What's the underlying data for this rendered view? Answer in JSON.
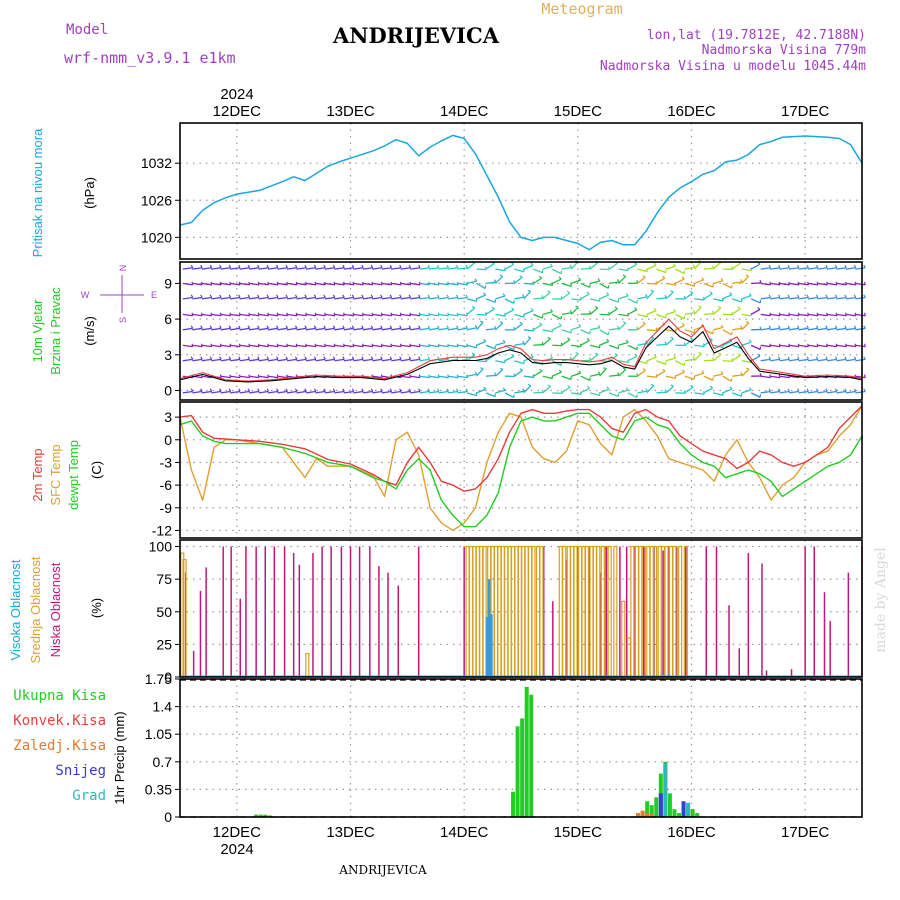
{
  "header": {
    "model_label": "Model",
    "model_name": "wrf-nmm_v3.9.1 e1km",
    "station": "ANDRIJEVICA",
    "product": "Meteogram",
    "coords": "lon,lat (19.7812E, 42.7188N)",
    "elevation": "Nadmorska Visina 779m",
    "model_elevation": "Nadmorska Visina u modelu 1045.44m",
    "watermark": "made by Angel",
    "footer": "ANDRIJEVICA"
  },
  "colors": {
    "pressure": "#1aa6e0",
    "temp2m": "#e83c3c",
    "sfc": "#e0a030",
    "dew": "#22cc22",
    "high_cloud": "#3a9ad8",
    "mid_cloud": "#d8a020",
    "low_cloud": "#c0187a",
    "total_precip": "#22cc22",
    "purple": "#a040c0",
    "conv": "#e84040",
    "frozen": "#e07a30",
    "snow": "#3a3ad8",
    "hail": "#30b8b8"
  },
  "chart_data": [
    {
      "type": "line",
      "panel": "pressure",
      "ylabel_side": "Pritisak na nivou mora",
      "unit": "(hPa)",
      "ylim": [
        1016.5,
        1038.5
      ],
      "yticks": [
        1020,
        1026,
        1032
      ],
      "grid": true,
      "x_days": [
        "12DEC",
        "13DEC",
        "14DEC",
        "15DEC",
        "16DEC",
        "17DEC"
      ],
      "x_year": "2024",
      "xlim": [
        11.5,
        17.5
      ],
      "series": [
        {
          "x": [
            11.5,
            11.6,
            11.7,
            11.8,
            11.9,
            12.0,
            12.2,
            12.4,
            12.5,
            12.6,
            12.8,
            12.9,
            13.0,
            13.2,
            13.3,
            13.4,
            13.5,
            13.6,
            13.7,
            13.8,
            13.9,
            14.0,
            14.1,
            14.2,
            14.3,
            14.4,
            14.5,
            14.6,
            14.7,
            14.8,
            14.9,
            15.0,
            15.1,
            15.2,
            15.3,
            15.4,
            15.5,
            15.6,
            15.7,
            15.8,
            15.9,
            16.0,
            16.1,
            16.2,
            16.3,
            16.4,
            16.5,
            16.6,
            16.7,
            16.8,
            17.0,
            17.2,
            17.3,
            17.4,
            17.5
          ],
          "y": [
            1022.0,
            1022.4,
            1024.4,
            1025.6,
            1026.4,
            1027.0,
            1027.6,
            1029.0,
            1029.8,
            1029.2,
            1031.5,
            1032.2,
            1032.8,
            1034.0,
            1034.8,
            1035.8,
            1035.2,
            1033.2,
            1034.6,
            1035.6,
            1036.5,
            1036.0,
            1033.5,
            1030.0,
            1026.5,
            1022.5,
            1020.0,
            1019.5,
            1020.0,
            1020.0,
            1019.5,
            1019.0,
            1018.0,
            1019.2,
            1019.5,
            1018.8,
            1018.8,
            1021.0,
            1024.0,
            1026.5,
            1028.0,
            1029.0,
            1030.2,
            1030.8,
            1032.2,
            1032.5,
            1033.4,
            1035.0,
            1035.5,
            1036.2,
            1036.4,
            1036.2,
            1036.0,
            1035.0,
            1032.0
          ]
        }
      ]
    },
    {
      "type": "line",
      "panel": "wind",
      "ylabel_side": [
        "10m Vjetar",
        "Brzina i Pravac"
      ],
      "unit": "(m/s)",
      "compass": {
        "n": "N",
        "s": "S",
        "w": "W",
        "e": "E"
      },
      "ylim": [
        -0.8,
        10.8
      ],
      "yticks": [
        0,
        3,
        6,
        9
      ],
      "series": [
        {
          "name": "speed",
          "x": [
            11.5,
            11.7,
            11.9,
            12.1,
            12.3,
            12.5,
            12.7,
            12.9,
            13.1,
            13.3,
            13.5,
            13.7,
            13.9,
            14.1,
            14.2,
            14.3,
            14.4,
            14.5,
            14.6,
            14.7,
            14.8,
            14.9,
            15.0,
            15.1,
            15.2,
            15.3,
            15.4,
            15.5,
            15.6,
            15.7,
            15.8,
            15.9,
            16.0,
            16.1,
            16.2,
            16.3,
            16.4,
            16.5,
            16.6,
            16.8,
            17.0,
            17.2,
            17.4,
            17.5
          ],
          "y": [
            1.0,
            1.5,
            0.9,
            0.8,
            0.9,
            1.1,
            1.3,
            1.2,
            1.2,
            1.0,
            1.5,
            2.5,
            2.8,
            2.8,
            3.0,
            3.5,
            3.8,
            3.5,
            2.6,
            2.5,
            2.6,
            2.6,
            2.5,
            2.4,
            2.5,
            2.8,
            2.2,
            2.0,
            4.0,
            5.0,
            6.0,
            5.0,
            4.5,
            5.5,
            3.5,
            4.0,
            4.5,
            3.0,
            1.8,
            1.5,
            1.2,
            1.3,
            1.2,
            1.0
          ]
        }
      ]
    },
    {
      "type": "line",
      "panel": "temperature",
      "ylabel_side": [
        "2m Temp",
        "SFC Temp",
        "dewpt Temp"
      ],
      "unit": "(C)",
      "ylim": [
        -13,
        5
      ],
      "yticks": [
        3,
        0,
        -3,
        -6,
        -9,
        -12
      ],
      "series": [
        {
          "name": "2m Temp",
          "x": [
            11.5,
            11.6,
            11.7,
            11.8,
            11.9,
            12.0,
            12.2,
            12.4,
            12.6,
            12.8,
            13.0,
            13.2,
            13.3,
            13.4,
            13.5,
            13.6,
            13.7,
            13.8,
            13.9,
            14.0,
            14.1,
            14.2,
            14.3,
            14.4,
            14.5,
            14.6,
            14.7,
            14.8,
            14.9,
            15.0,
            15.1,
            15.2,
            15.3,
            15.4,
            15.5,
            15.6,
            15.7,
            15.8,
            15.9,
            16.0,
            16.1,
            16.2,
            16.3,
            16.4,
            16.5,
            16.6,
            16.7,
            16.8,
            16.9,
            17.0,
            17.1,
            17.2,
            17.3,
            17.4,
            17.5
          ],
          "y": [
            3.0,
            3.2,
            1.0,
            0.2,
            0.1,
            0.0,
            -0.2,
            -0.6,
            -1.2,
            -2.6,
            -3.2,
            -4.6,
            -5.5,
            -6.0,
            -3.0,
            -1.0,
            -3.0,
            -5.5,
            -6.0,
            -6.8,
            -6.5,
            -5.0,
            -2.5,
            1.0,
            3.5,
            4.0,
            3.5,
            3.5,
            3.8,
            4.0,
            4.0,
            3.0,
            1.5,
            1.0,
            3.5,
            4.0,
            3.0,
            2.5,
            0.5,
            -0.5,
            -1.5,
            -2.0,
            -2.5,
            -3.8,
            -3.0,
            -1.5,
            -2.0,
            -3.0,
            -3.5,
            -3.0,
            -2.0,
            -1.0,
            1.5,
            3.0,
            4.5
          ]
        },
        {
          "name": "SFC Temp",
          "x": [
            11.5,
            11.6,
            11.7,
            11.8,
            11.9,
            12.0,
            12.2,
            12.4,
            12.6,
            12.7,
            12.8,
            13.0,
            13.2,
            13.3,
            13.4,
            13.5,
            13.6,
            13.7,
            13.8,
            13.9,
            14.0,
            14.1,
            14.2,
            14.3,
            14.4,
            14.5,
            14.6,
            14.7,
            14.8,
            14.9,
            15.0,
            15.1,
            15.2,
            15.3,
            15.4,
            15.5,
            15.6,
            15.7,
            15.8,
            15.9,
            16.0,
            16.1,
            16.2,
            16.3,
            16.4,
            16.5,
            16.6,
            16.7,
            16.8,
            16.9,
            17.0,
            17.1,
            17.2,
            17.3,
            17.4,
            17.5
          ],
          "y": [
            3.0,
            -4.0,
            -8.0,
            -1.0,
            0.0,
            0.0,
            -0.5,
            -1.0,
            -5.0,
            -2.5,
            -3.5,
            -3.5,
            -4.8,
            -7.5,
            0.0,
            1.0,
            -2.0,
            -9.0,
            -11.0,
            -12.0,
            -11.0,
            -9.0,
            -3.0,
            1.0,
            3.5,
            3.0,
            -1.0,
            -2.5,
            -3.0,
            -1.5,
            2.5,
            2.0,
            -0.5,
            -2.0,
            3.0,
            4.0,
            2.5,
            0.5,
            -2.5,
            -3.0,
            -3.5,
            -4.0,
            -5.5,
            -2.0,
            0.0,
            -3.0,
            -5.0,
            -8.0,
            -6.0,
            -5.0,
            -3.0,
            -2.0,
            -1.5,
            0.5,
            2.0,
            4.5
          ]
        },
        {
          "name": "dewpt Temp",
          "x": [
            11.5,
            11.6,
            11.7,
            11.8,
            11.9,
            12.0,
            12.2,
            12.4,
            12.6,
            12.8,
            13.0,
            13.2,
            13.3,
            13.4,
            13.5,
            13.6,
            13.7,
            13.8,
            13.9,
            14.0,
            14.1,
            14.2,
            14.3,
            14.4,
            14.5,
            14.6,
            14.7,
            14.8,
            14.9,
            15.0,
            15.1,
            15.2,
            15.3,
            15.4,
            15.5,
            15.6,
            15.7,
            15.8,
            15.9,
            16.0,
            16.1,
            16.2,
            16.3,
            16.4,
            16.5,
            16.6,
            16.7,
            16.8,
            16.9,
            17.0,
            17.1,
            17.2,
            17.3,
            17.4,
            17.5
          ],
          "y": [
            2.0,
            2.5,
            0.5,
            -0.2,
            -0.5,
            -0.5,
            -0.5,
            -1.0,
            -1.8,
            -3.0,
            -3.5,
            -5.0,
            -5.5,
            -6.5,
            -4.0,
            -2.5,
            -4.0,
            -8.0,
            -10.0,
            -11.5,
            -11.5,
            -10.0,
            -7.0,
            -1.0,
            2.5,
            3.0,
            2.5,
            2.5,
            3.0,
            3.5,
            3.5,
            2.0,
            0.5,
            0.0,
            2.5,
            3.0,
            2.0,
            1.5,
            -0.5,
            -2.0,
            -3.0,
            -3.5,
            -5.0,
            -4.5,
            -4.0,
            -4.5,
            -5.5,
            -7.5,
            -6.5,
            -5.5,
            -4.5,
            -3.5,
            -3.0,
            -2.0,
            0.5
          ]
        }
      ]
    },
    {
      "type": "bar",
      "panel": "cloud",
      "ylabel_side": [
        "Visoka Oblacnost",
        "Srednja Oblacnost",
        "Niska Oblacnost"
      ],
      "unit": "(%)",
      "ylim": [
        0,
        105
      ],
      "yticks": [
        0,
        25,
        50,
        75,
        100
      ],
      "series": [
        {
          "name": "Niska Oblacnost",
          "x": [
            11.55,
            11.62,
            11.68,
            11.73,
            11.88,
            11.95,
            12.03,
            12.08,
            12.17,
            12.25,
            12.33,
            12.42,
            12.5,
            12.55,
            12.67,
            12.75,
            12.83,
            12.92,
            13.0,
            13.08,
            13.17,
            13.25,
            13.33,
            13.42,
            13.6,
            14.0,
            14.7,
            14.78,
            14.9,
            15.0,
            15.1,
            15.2,
            15.25,
            15.37,
            15.43,
            15.5,
            15.58,
            15.67,
            15.75,
            15.8,
            15.87,
            15.95,
            16.13,
            16.22,
            16.33,
            16.42,
            16.5,
            16.62,
            16.66,
            16.88,
            17.0,
            17.08,
            17.17,
            17.22,
            17.38,
            17.5
          ],
          "y": [
            80,
            20,
            66,
            84,
            100,
            100,
            60,
            100,
            100,
            100,
            100,
            100,
            95,
            86,
            95,
            100,
            100,
            100,
            100,
            100,
            100,
            85,
            80,
            70,
            100,
            100,
            100,
            58,
            90,
            100,
            100,
            80,
            100,
            100,
            100,
            100,
            100,
            100,
            97,
            100,
            100,
            100,
            100,
            100,
            55,
            22,
            95,
            87,
            5,
            6,
            100,
            100,
            65,
            43,
            80,
            100
          ]
        },
        {
          "name": "Srednja Oblacnost",
          "x": [
            11.52,
            11.54,
            12.62,
            14.03,
            14.06,
            14.09,
            14.12,
            14.15,
            14.18,
            14.22,
            14.25,
            14.28,
            14.31,
            14.34,
            14.37,
            14.4,
            14.43,
            14.46,
            14.49,
            14.52,
            14.55,
            14.58,
            14.61,
            14.65,
            14.68,
            14.85,
            14.88,
            14.92,
            14.95,
            14.98,
            15.02,
            15.05,
            15.08,
            15.12,
            15.15,
            15.18,
            15.22,
            15.25,
            15.28,
            15.33,
            15.4,
            15.45,
            15.48,
            15.52,
            15.55,
            15.58,
            15.62,
            15.65,
            15.68,
            15.72,
            15.75,
            15.78,
            15.82,
            15.85,
            15.9,
            15.95
          ],
          "y": [
            95,
            90,
            18,
            100,
            100,
            100,
            100,
            100,
            100,
            100,
            100,
            100,
            100,
            100,
            100,
            100,
            100,
            100,
            100,
            100,
            100,
            100,
            100,
            100,
            100,
            100,
            100,
            100,
            100,
            100,
            100,
            100,
            100,
            100,
            100,
            100,
            100,
            100,
            100,
            100,
            58,
            30,
            100,
            100,
            100,
            100,
            100,
            100,
            100,
            100,
            100,
            100,
            100,
            100,
            100,
            100
          ]
        },
        {
          "name": "Visoka Oblacnost",
          "x": [
            14.2,
            14.22,
            14.24,
            15.75,
            15.8
          ],
          "y": [
            46,
            75,
            48,
            2,
            2
          ]
        }
      ]
    },
    {
      "type": "bar",
      "panel": "precip",
      "legend": [
        "Ukupna Kisa",
        "Konvek.Kisa",
        "Zaledj.Kisa",
        "Snijeg",
        "Grad"
      ],
      "ylabel": "1hr Precip (mm)",
      "ylim": [
        0,
        1.75
      ],
      "yticks": [
        0,
        0.35,
        0.7,
        1.05,
        1.4,
        1.75
      ],
      "series": [
        {
          "name": "Ukupna Kisa",
          "x": [
            12.17,
            12.21,
            12.25,
            12.29,
            14.43,
            14.47,
            14.51,
            14.55,
            14.59,
            15.57,
            15.61,
            15.65,
            15.69,
            15.73,
            15.77,
            15.81,
            15.85,
            15.89,
            15.93,
            15.97,
            16.01,
            16.05
          ],
          "y": [
            0.03,
            0.03,
            0.03,
            0.02,
            0.32,
            1.15,
            1.25,
            1.65,
            1.55,
            0.05,
            0.2,
            0.15,
            0.25,
            0.55,
            0.7,
            0.3,
            0.1,
            0.05,
            0.12,
            0.15,
            0.1,
            0.05
          ]
        },
        {
          "name": "Zaledj.Kisa",
          "x": [
            15.53,
            15.57,
            15.61,
            15.65
          ],
          "y": [
            0.05,
            0.08,
            0.05,
            0.04
          ]
        },
        {
          "name": "Snijeg",
          "x": [
            15.73,
            15.93
          ],
          "y": [
            0.3,
            0.2
          ]
        },
        {
          "name": "Grad",
          "x": [
            15.77,
            15.97
          ],
          "y": [
            0.68,
            0.18
          ]
        }
      ]
    }
  ]
}
